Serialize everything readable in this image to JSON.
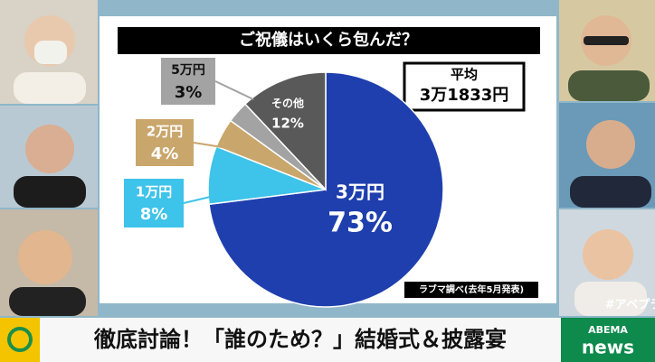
{
  "chart_data": {
    "type": "pie",
    "title": "ご祝儀はいくら包んだ？",
    "categories": [
      "3万円",
      "1万円",
      "2万円",
      "5万円",
      "その他"
    ],
    "values": [
      73,
      8,
      4,
      3,
      12
    ],
    "value_labels": [
      "73%",
      "8%",
      "4%",
      "3%",
      "12%"
    ],
    "colors": [
      "#1f3fae",
      "#3ec3ea",
      "#c9a66b",
      "#a3a3a3",
      "#595959"
    ]
  },
  "average_box": {
    "label": "平均",
    "value": "3万1833円"
  },
  "source": "ラブマ調べ(去年5月発表)",
  "hashtag": "#アベプラ",
  "banner": "徹底討論！「誰のため？」結婚式＆披露宴",
  "logo": {
    "top": "ABEMA",
    "bottom": "news"
  }
}
